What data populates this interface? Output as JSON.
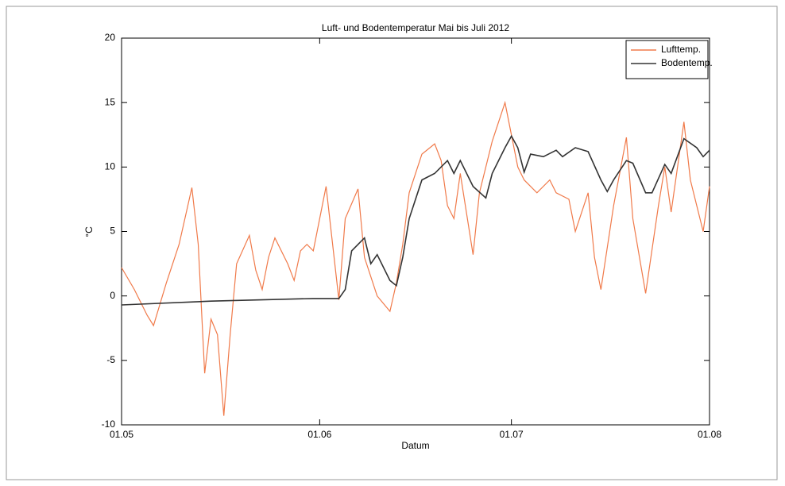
{
  "chart_data": {
    "type": "line",
    "title": "Luft- und Bodentemperatur Mai bis Juli 2012",
    "xlabel": "Datum",
    "ylabel": "°C",
    "xlim": [
      "01.05",
      "01.08"
    ],
    "xticks": [
      "01.05",
      "01.06",
      "01.07",
      "01.08"
    ],
    "ylim": [
      -10,
      20
    ],
    "yticks": [
      -10,
      -5,
      0,
      5,
      10,
      15,
      20
    ],
    "legend": "upper right",
    "series": [
      {
        "name": "Lufttemp.",
        "color": "#f07a4a",
        "x": [
          "01.05",
          "03.05",
          "05.05",
          "06.05",
          "08.05",
          "10.05",
          "12.05",
          "13.05",
          "14.05",
          "15.05",
          "16.05",
          "17.05",
          "18.05",
          "19.05",
          "21.05",
          "22.05",
          "23.05",
          "24.05",
          "25.05",
          "27.05",
          "28.05",
          "29.05",
          "30.05",
          "31.05",
          "02.06",
          "04.06",
          "05.06",
          "07.06",
          "08.06",
          "10.06",
          "12.06",
          "13.06",
          "14.06",
          "15.06",
          "17.06",
          "19.06",
          "20.06",
          "21.06",
          "22.06",
          "23.06",
          "25.06",
          "26.06",
          "28.06",
          "30.06",
          "02.07",
          "03.07",
          "05.07",
          "07.07",
          "08.07",
          "10.07",
          "11.07",
          "13.07",
          "14.07",
          "15.07",
          "17.07",
          "19.07",
          "20.07",
          "22.07",
          "24.07",
          "25.07",
          "26.07",
          "28.07",
          "29.07",
          "31.07",
          "01.08"
        ],
        "values": [
          2.2,
          0.5,
          -1.5,
          -2.3,
          1.0,
          4.0,
          8.4,
          4.0,
          -6.0,
          -1.8,
          -3.0,
          -9.3,
          -3.0,
          2.5,
          4.7,
          2.0,
          0.5,
          3.0,
          4.5,
          2.5,
          1.2,
          3.5,
          4.0,
          3.5,
          8.5,
          -0.3,
          6.0,
          8.3,
          3.0,
          0.0,
          -1.2,
          1.0,
          4.0,
          8.0,
          11.0,
          11.8,
          10.5,
          7.0,
          6.0,
          9.5,
          3.2,
          8.0,
          12.0,
          15.0,
          10.0,
          9.0,
          8.0,
          9.0,
          8.0,
          7.5,
          5.0,
          8.0,
          3.0,
          0.5,
          7.0,
          12.3,
          6.0,
          0.2,
          7.0,
          10.0,
          6.5,
          13.5,
          9.0,
          5.0,
          8.5
        ]
      },
      {
        "name": "Bodentemp.",
        "color": "#333333",
        "x": [
          "01.05",
          "15.05",
          "31.05",
          "04.06",
          "05.06",
          "06.06",
          "08.06",
          "09.06",
          "10.06",
          "12.06",
          "13.06",
          "14.06",
          "15.06",
          "17.06",
          "19.06",
          "21.06",
          "22.06",
          "23.06",
          "25.06",
          "27.06",
          "28.06",
          "30.06",
          "01.07",
          "02.07",
          "03.07",
          "04.07",
          "06.07",
          "08.07",
          "09.07",
          "11.07",
          "13.07",
          "15.07",
          "16.07",
          "17.07",
          "19.07",
          "20.07",
          "22.07",
          "23.07",
          "25.07",
          "26.07",
          "28.07",
          "30.07",
          "31.07",
          "01.08"
        ],
        "values": [
          -0.7,
          -0.4,
          -0.2,
          -0.2,
          0.5,
          3.5,
          4.5,
          2.5,
          3.2,
          1.2,
          0.8,
          3.0,
          6.0,
          9.0,
          9.5,
          10.5,
          9.5,
          10.5,
          8.5,
          7.6,
          9.5,
          11.5,
          12.4,
          11.5,
          9.6,
          11.0,
          10.8,
          11.3,
          10.8,
          11.5,
          11.2,
          9.0,
          8.1,
          9.0,
          10.5,
          10.3,
          8.0,
          8.0,
          10.2,
          9.5,
          12.2,
          11.5,
          10.8,
          11.3
        ]
      }
    ]
  }
}
